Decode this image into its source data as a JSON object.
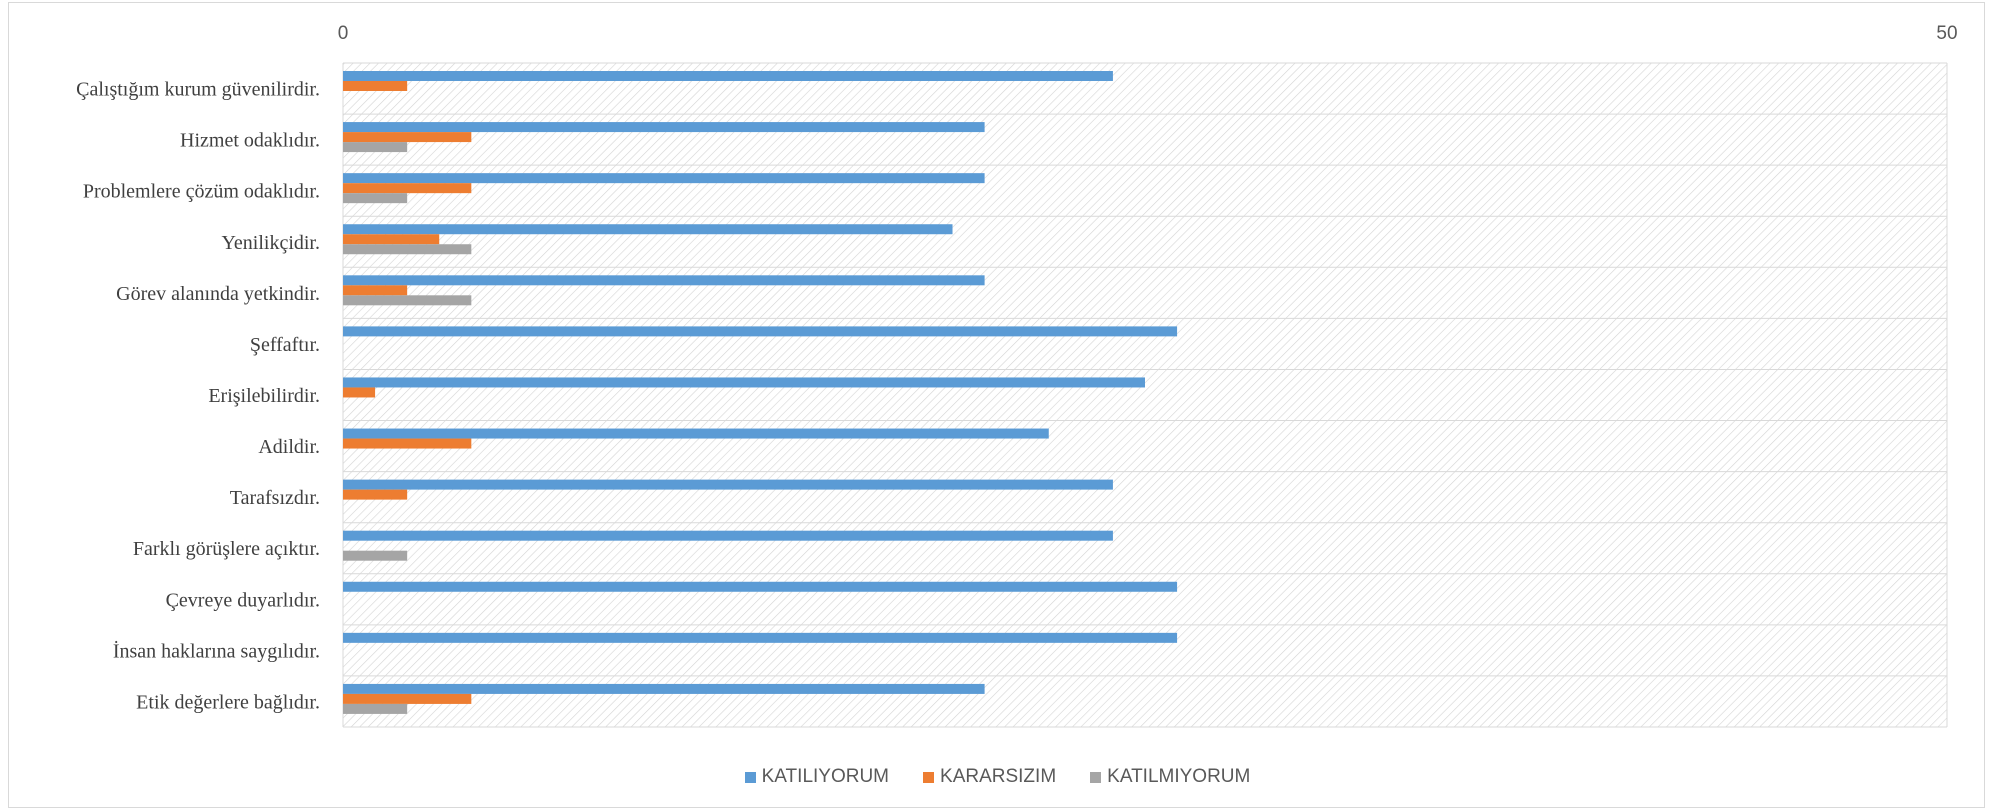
{
  "chart_data": {
    "type": "bar",
    "orientation": "horizontal",
    "categories": [
      "Çalıştığım kurum güvenilirdir.",
      "Hizmet odaklıdır.",
      "Problemlere çözüm odaklıdır.",
      "Yenilikçidir.",
      "Görev alanında yetkindir.",
      "Şeffaftır.",
      "Erişilebilirdir.",
      "Adildir.",
      "Tarafsızdır.",
      "Farklı görüşlere açıktır.",
      "Çevreye duyarlıdır.",
      "İnsan haklarına saygılıdır.",
      "Etik değerlere bağlıdır."
    ],
    "series": [
      {
        "name": "KATILIYORUM",
        "color": "#5b9bd5",
        "values": [
          24,
          20,
          20,
          19,
          20,
          26,
          25,
          22,
          24,
          24,
          26,
          26,
          20
        ]
      },
      {
        "name": "KARARSIZIM",
        "color": "#ed7d31",
        "values": [
          2,
          4,
          4,
          3,
          2,
          0,
          1,
          4,
          2,
          0,
          0,
          0,
          4
        ]
      },
      {
        "name": "KATILMIYORUM",
        "color": "#a5a5a5",
        "values": [
          0,
          2,
          2,
          4,
          4,
          0,
          0,
          0,
          0,
          2,
          0,
          0,
          2
        ]
      }
    ],
    "xlim": [
      0,
      50
    ],
    "x_ticks": [
      "0",
      "50"
    ],
    "x_axis_position": "top",
    "grid": true,
    "plot_background": "diagonal-hatch",
    "legend_position": "bottom"
  }
}
